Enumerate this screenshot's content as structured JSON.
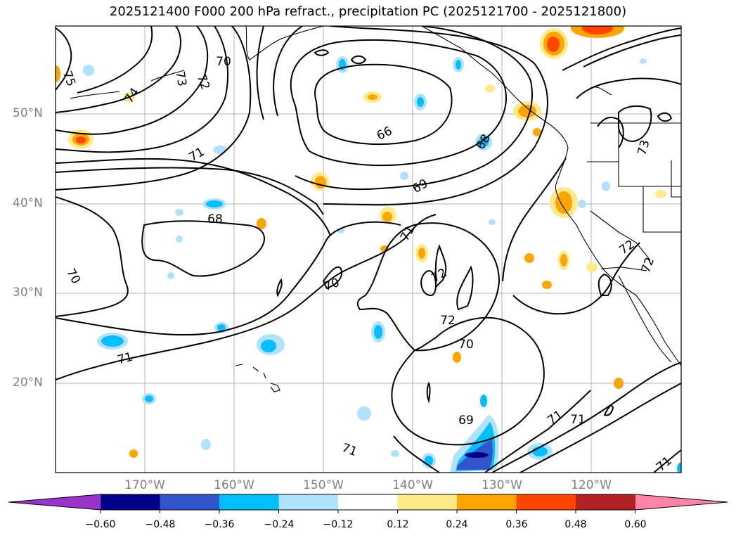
{
  "title": "2025121400 F000 200 hPa refract., precipitation PC (2025121700 - 2025121800)",
  "lat_labels": [
    "50°N",
    "40°N",
    "30°N",
    "20°N"
  ],
  "lon_labels": [
    "170°W",
    "160°W",
    "150°W",
    "140°W",
    "130°W",
    "120°W"
  ],
  "contour_labels": [
    "75",
    "74",
    "73",
    "72",
    "70",
    "71",
    "68",
    "66",
    "68",
    "69",
    "71",
    "70",
    "71",
    "72",
    "72",
    "70",
    "69",
    "71",
    "71",
    "71",
    "72",
    "72",
    "73",
    "71",
    "70"
  ],
  "colorbar": {
    "ticks": [
      "−0.60",
      "−0.48",
      "−0.36",
      "−0.24",
      "−0.12",
      "0.12",
      "0.24",
      "0.36",
      "0.48",
      "0.60"
    ],
    "colors": [
      "#9933cc",
      "#00008b",
      "#3355cc",
      "#00bfff",
      "#b0e2ff",
      "#ffffff",
      "#ffea8a",
      "#ffa500",
      "#ff4500",
      "#b22222",
      "#ff85a8"
    ]
  }
}
